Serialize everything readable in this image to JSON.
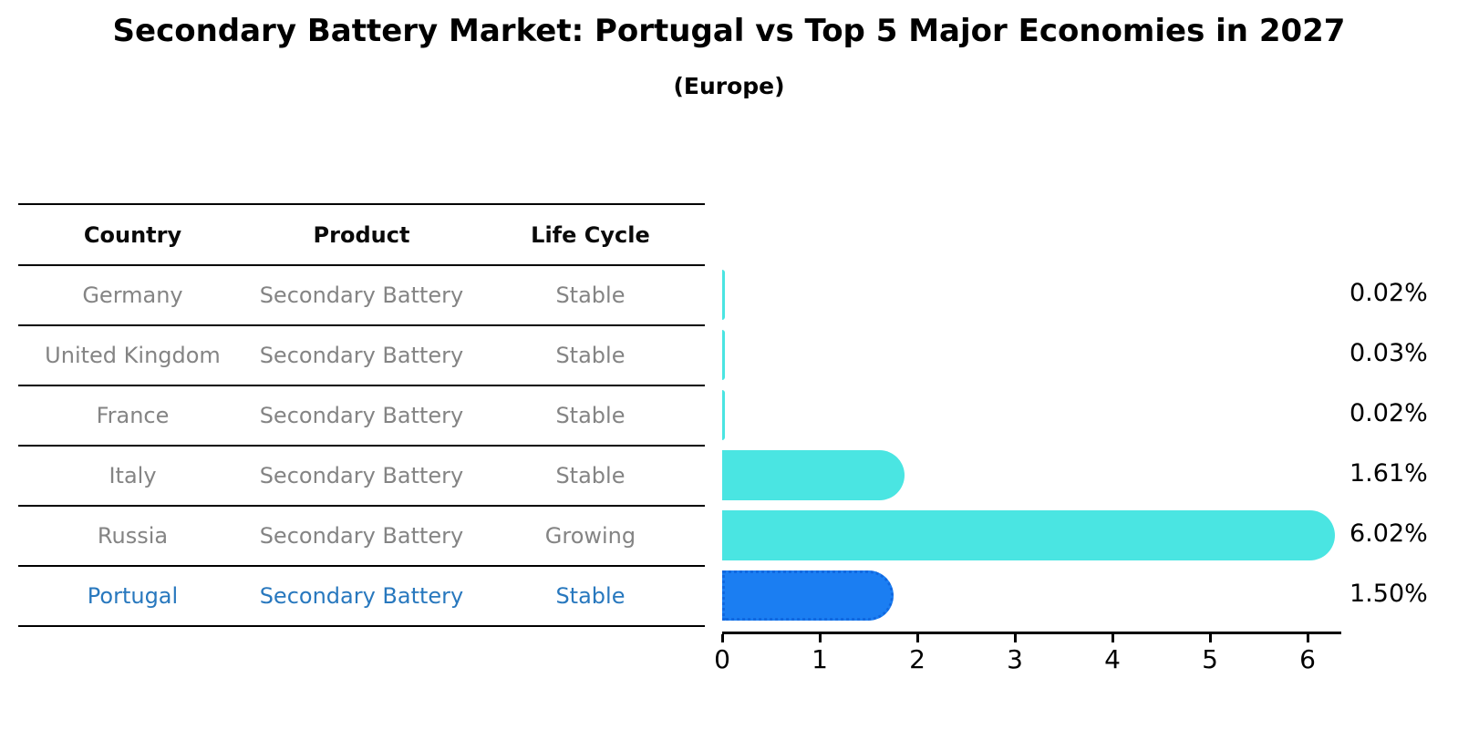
{
  "title": "Secondary Battery Market: Portugal vs Top 5 Major Economies in 2027",
  "subtitle": "(Europe)",
  "colors": {
    "bar": "#4AE5E2",
    "highlight_bar": "#1B7EF2",
    "highlight_bar_border": "#1068E0",
    "highlight_text": "#2878BE",
    "row_text": "#848484",
    "header_text": "#0a0a0a",
    "line": "#000000"
  },
  "table": {
    "headers": [
      "Country",
      "Product",
      "Life Cycle"
    ],
    "rows": [
      {
        "country": "Germany",
        "product": "Secondary Battery",
        "life_cycle": "Stable",
        "highlight": false
      },
      {
        "country": "United Kingdom",
        "product": "Secondary Battery",
        "life_cycle": "Stable",
        "highlight": false
      },
      {
        "country": "France",
        "product": "Secondary Battery",
        "life_cycle": "Stable",
        "highlight": false
      },
      {
        "country": "Italy",
        "product": "Secondary Battery",
        "life_cycle": "Stable",
        "highlight": false
      },
      {
        "country": "Russia",
        "product": "Secondary Battery",
        "life_cycle": "Growing",
        "highlight": false
      },
      {
        "country": "Portugal",
        "product": "Secondary Battery",
        "life_cycle": "Stable",
        "highlight": true
      }
    ]
  },
  "chart_data": {
    "type": "bar",
    "orientation": "horizontal",
    "title": "Secondary Battery Market: Portugal vs Top 5 Major Economies in 2027 (Europe)",
    "categories": [
      "Germany",
      "United Kingdom",
      "France",
      "Italy",
      "Russia",
      "Portugal"
    ],
    "values": [
      0.02,
      0.03,
      0.02,
      1.61,
      6.02,
      1.5
    ],
    "value_labels": [
      "0.02%",
      "0.03%",
      "0.02%",
      "1.61%",
      "6.02%",
      "1.50%"
    ],
    "highlight_index": 5,
    "x_ticks": [
      0,
      1,
      2,
      3,
      4,
      5,
      6
    ],
    "xlim": [
      0,
      6.35
    ],
    "xlabel": "",
    "ylabel": "",
    "grid": false,
    "legend": "none"
  }
}
